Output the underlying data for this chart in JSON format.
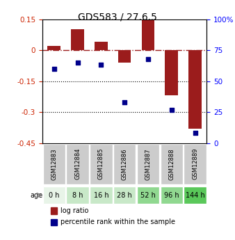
{
  "title": "GDS583 / 27.6.5",
  "samples": [
    "GSM12883",
    "GSM12884",
    "GSM12885",
    "GSM12886",
    "GSM12887",
    "GSM12888",
    "GSM12889"
  ],
  "ages": [
    "0 h",
    "8 h",
    "16 h",
    "28 h",
    "52 h",
    "96 h",
    "144 h"
  ],
  "log_ratio": [
    0.02,
    0.1,
    0.04,
    -0.06,
    0.15,
    -0.22,
    -0.38
  ],
  "percentile_rank": [
    60,
    65,
    63,
    33,
    68,
    27,
    8
  ],
  "bar_color": "#9B1C1C",
  "dot_color": "#00008B",
  "ylim_left": [
    -0.45,
    0.15
  ],
  "ylim_right": [
    0,
    100
  ],
  "yticks_left": [
    0.15,
    0,
    -0.15,
    -0.3,
    -0.45
  ],
  "yticks_right": [
    100,
    75,
    50,
    25,
    0
  ],
  "ytick_labels_left": [
    "0.15",
    "0",
    "-0.15",
    "-0.3",
    "-0.45"
  ],
  "ytick_labels_right": [
    "100%",
    "75",
    "50",
    "25",
    "0"
  ],
  "hline_zero": 0,
  "dotted_lines": [
    -0.15,
    -0.3
  ],
  "age_colors": [
    "#e8f4e8",
    "#c8e8c8",
    "#c8e8c8",
    "#c8e8c8",
    "#90d890",
    "#90d890",
    "#5ac85a"
  ],
  "gsm_bg_color": "#cccccc",
  "legend_items": [
    "log ratio",
    "percentile rank within the sample"
  ]
}
